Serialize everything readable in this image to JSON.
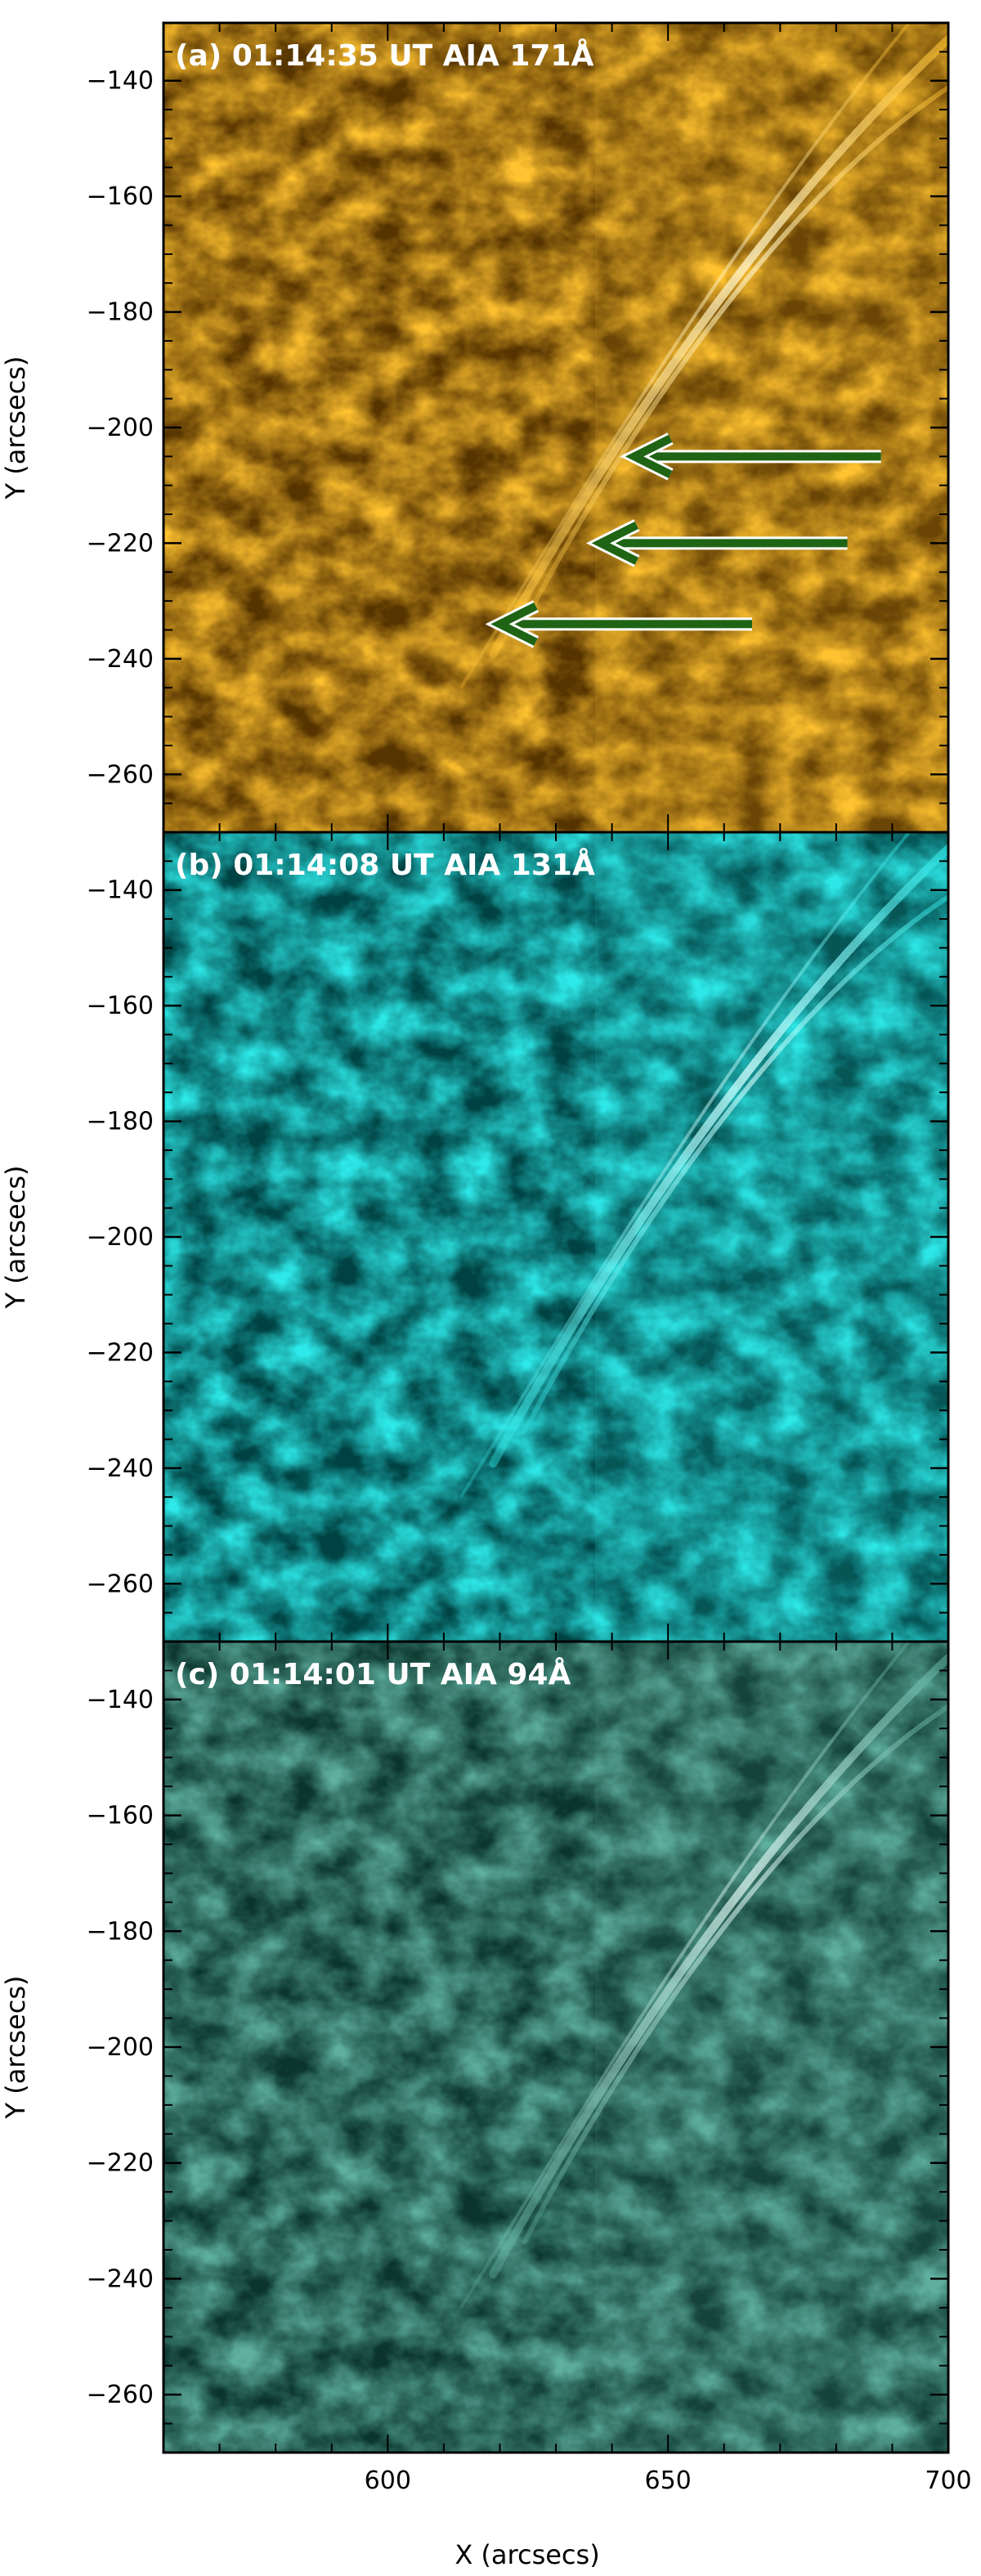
{
  "figure": {
    "panels": [
      {
        "label": "(a) 01:14:35 UT AIA 171Å",
        "colors": {
          "dark": "#1a0c00",
          "mid": "#c98200",
          "bright": "#ffc230",
          "peak": "#fff6cf"
        },
        "seed": 11,
        "arrows": [
          {
            "color": "#1e6414",
            "from": [
              688,
              -205
            ],
            "to": [
              644,
              -205
            ]
          },
          {
            "color": "#1e6414",
            "from": [
              682,
              -220
            ],
            "to": [
              638,
              -220
            ]
          },
          {
            "color": "#1e6414",
            "from": [
              665,
              -234
            ],
            "to": [
              620,
              -234
            ]
          }
        ]
      },
      {
        "label": "(b) 01:14:08 UT AIA 131Å",
        "colors": {
          "dark": "#001213",
          "mid": "#009d9e",
          "bright": "#2ee9e9",
          "peak": "#d2ffff"
        },
        "seed": 23,
        "arrows": []
      },
      {
        "label": "(c) 01:14:01 UT AIA 94Å",
        "colors": {
          "dark": "#021a14",
          "mid": "#1d6a5a",
          "bright": "#5fb0a0",
          "peak": "#d8f2ec"
        },
        "seed": 37,
        "arrows": []
      }
    ],
    "x_ticks": [
      "600",
      "650",
      "700"
    ],
    "y_ticks": [
      "−140",
      "−160",
      "−180",
      "−200",
      "−220",
      "−240",
      "−260"
    ],
    "y_label": "Y (arcsecs)",
    "x_label": "X (arcsecs)",
    "x_range": [
      560,
      700
    ],
    "y_range": [
      -270,
      -130
    ]
  }
}
